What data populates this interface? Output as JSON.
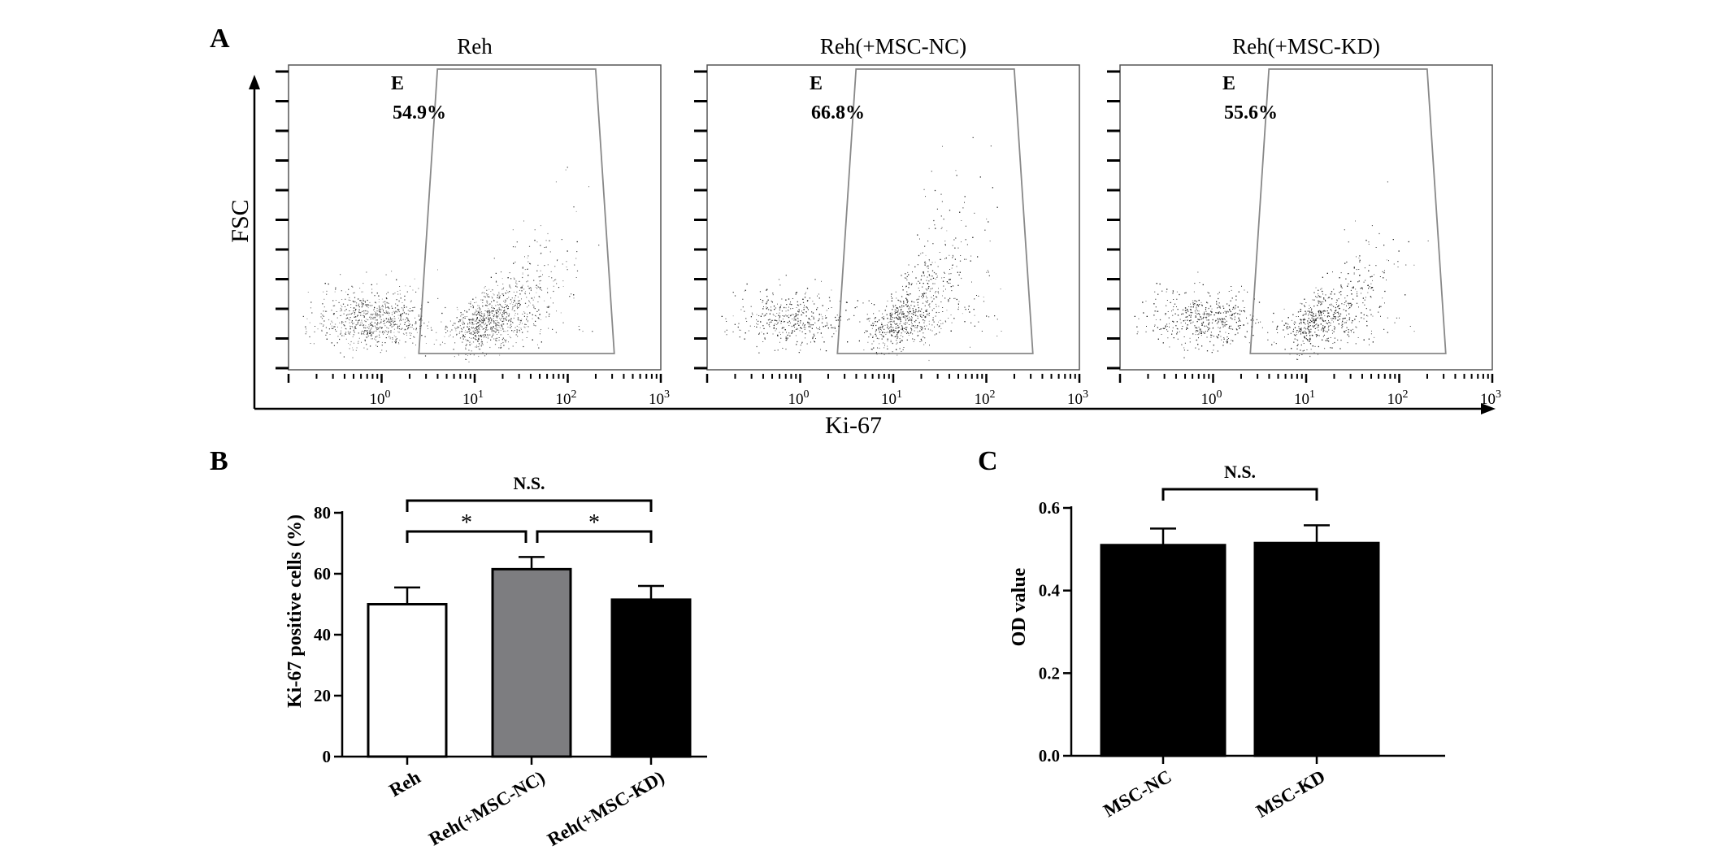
{
  "panels": {
    "A": {
      "letter": "A"
    },
    "B": {
      "letter": "B"
    },
    "C": {
      "letter": "C"
    }
  },
  "chart_data": [
    {
      "type": "scatter",
      "panel": "A",
      "xlabel": "Ki-67",
      "ylabel": "FSC",
      "xscale": "log",
      "xlim": [
        0.1,
        1000
      ],
      "xticks": [
        {
          "base": "10",
          "exp": "0"
        },
        {
          "base": "10",
          "exp": "1"
        },
        {
          "base": "10",
          "exp": "2"
        },
        {
          "base": "10",
          "exp": "3"
        }
      ],
      "subplots": [
        {
          "title": "Reh",
          "gate": "E",
          "percent": "54.9%",
          "percent_value": 54.9
        },
        {
          "title": "Reh(+MSC-NC)",
          "gate": "E",
          "percent": "66.8%",
          "percent_value": 66.8
        },
        {
          "title": "Reh(+MSC-KD)",
          "gate": "E",
          "percent": "55.6%",
          "percent_value": 55.6
        }
      ],
      "colors": {
        "points": "#1a1a1a",
        "gate": "#888888"
      }
    },
    {
      "type": "bar",
      "panel": "B",
      "categories": [
        "Reh",
        "Reh(+MSC-NC)",
        "Reh(+MSC-KD)"
      ],
      "values": [
        50,
        61.5,
        51.5
      ],
      "errors": [
        5.5,
        4,
        4.5
      ],
      "bar_colors": [
        "#ffffff",
        "#7d7d80",
        "#000000"
      ],
      "ylabel": "Ki-67 positive cells (%)",
      "ylim": [
        0,
        80
      ],
      "yticks": [
        "0",
        "20",
        "40",
        "60",
        "80"
      ],
      "comparisons": [
        {
          "from": 0,
          "to": 2,
          "label": "N.S."
        },
        {
          "from": 0,
          "to": 1,
          "label": "*"
        },
        {
          "from": 1,
          "to": 2,
          "label": "*"
        }
      ]
    },
    {
      "type": "bar",
      "panel": "C",
      "categories": [
        "MSC-NC",
        "MSC-KD"
      ],
      "values": [
        0.51,
        0.515
      ],
      "errors": [
        0.04,
        0.043
      ],
      "bar_colors": [
        "#000000",
        "#000000"
      ],
      "ylabel": "OD value",
      "ylim": [
        0,
        0.6
      ],
      "yticks": [
        "0.0",
        "0.2",
        "0.4",
        "0.6"
      ],
      "comparisons": [
        {
          "from": 0,
          "to": 1,
          "label": "N.S."
        }
      ]
    }
  ]
}
